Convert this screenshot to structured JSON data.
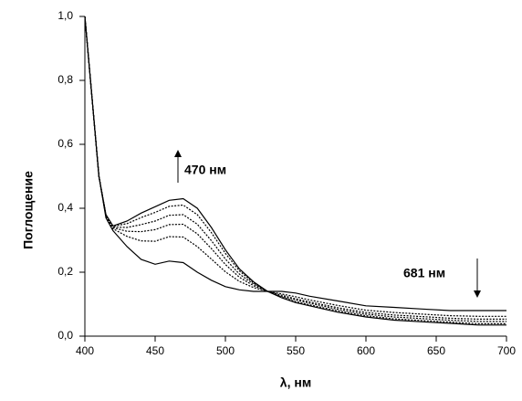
{
  "chart_data": {
    "type": "line",
    "x_label": "λ, нм",
    "y_label": "Поглощение",
    "annotations": [
      "470 нм",
      "681 нм"
    ],
    "x": [
      400,
      405,
      410,
      415,
      420,
      430,
      440,
      450,
      460,
      470,
      480,
      490,
      500,
      510,
      520,
      530,
      540,
      550,
      560,
      580,
      600,
      620,
      640,
      660,
      680,
      700
    ],
    "series": [
      {
        "color": "#000000",
        "values": [
          1.0,
          0.75,
          0.5,
          0.37,
          0.33,
          0.28,
          0.24,
          0.225,
          0.235,
          0.23,
          0.2,
          0.175,
          0.155,
          0.145,
          0.14,
          0.14,
          0.14,
          0.135,
          0.125,
          0.11,
          0.095,
          0.09,
          0.085,
          0.08,
          0.08,
          0.08
        ]
      },
      {
        "color": "#000000",
        "values": [
          1.0,
          0.75,
          0.5,
          0.374,
          0.336,
          0.312,
          0.298,
          0.297,
          0.311,
          0.31,
          0.28,
          0.241,
          0.201,
          0.171,
          0.152,
          0.14,
          0.132,
          0.123,
          0.113,
          0.096,
          0.081,
          0.074,
          0.069,
          0.064,
          0.062,
          0.062
        ]
      },
      {
        "color": "#000000",
        "values": [
          1.0,
          0.75,
          0.5,
          0.376,
          0.339,
          0.328,
          0.327,
          0.333,
          0.349,
          0.35,
          0.32,
          0.274,
          0.224,
          0.184,
          0.158,
          0.14,
          0.128,
          0.117,
          0.107,
          0.089,
          0.074,
          0.066,
          0.061,
          0.056,
          0.053,
          0.053
        ]
      },
      {
        "color": "#000000",
        "values": [
          1.0,
          0.75,
          0.5,
          0.378,
          0.341,
          0.34,
          0.349,
          0.36,
          0.378,
          0.38,
          0.35,
          0.299,
          0.241,
          0.194,
          0.163,
          0.14,
          0.125,
          0.113,
          0.103,
          0.084,
          0.069,
          0.06,
          0.055,
          0.05,
          0.046,
          0.046
        ]
      },
      {
        "color": "#000000",
        "values": [
          1.0,
          0.75,
          0.5,
          0.379,
          0.344,
          0.352,
          0.371,
          0.387,
          0.406,
          0.41,
          0.38,
          0.324,
          0.259,
          0.204,
          0.167,
          0.14,
          0.122,
          0.108,
          0.098,
          0.079,
          0.064,
          0.054,
          0.049,
          0.044,
          0.039,
          0.039
        ]
      },
      {
        "color": "#000000",
        "values": [
          1.0,
          0.75,
          0.5,
          0.38,
          0.345,
          0.36,
          0.385,
          0.405,
          0.425,
          0.43,
          0.4,
          0.34,
          0.27,
          0.21,
          0.17,
          0.14,
          0.12,
          0.105,
          0.095,
          0.075,
          0.06,
          0.05,
          0.045,
          0.04,
          0.035,
          0.035
        ]
      }
    ],
    "xlim": [
      400,
      700
    ],
    "xticks": [
      400,
      450,
      500,
      550,
      600,
      650,
      700
    ],
    "ylim": [
      0,
      1.0
    ],
    "yticks": [
      {
        "value": 0,
        "label": "0,0"
      },
      {
        "value": 0.2,
        "label": "0,2"
      },
      {
        "value": 0.4,
        "label": "0,4"
      },
      {
        "value": 0.6,
        "label": "0,6"
      },
      {
        "value": 0.8,
        "label": "0,8"
      },
      {
        "value": 1.0,
        "label": "1,0"
      }
    ],
    "grid": false
  }
}
